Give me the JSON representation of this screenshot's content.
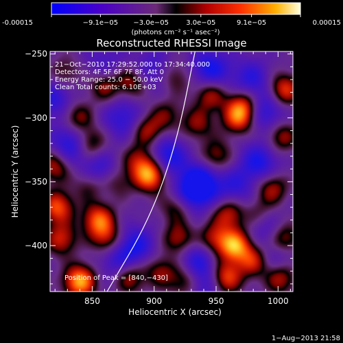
{
  "colorbar": {
    "tick_labels": [
      "-0.00015",
      "−9.1e−05",
      "−3.0e−05",
      "3.0e−05",
      "9.1e−05",
      "0.00015"
    ],
    "tick_values": [
      -0.00015,
      -9.1e-05,
      -3e-05,
      3e-05,
      9.1e-05,
      0.00015
    ],
    "label": "(photons cm⁻² s⁻¹ asec⁻²)",
    "range": [
      -0.00015,
      0.00015
    ]
  },
  "chart_data": {
    "type": "heatmap",
    "title": "Reconstructed RHESSI Image",
    "xlabel": "Heliocentric X (arcsec)",
    "ylabel": "Heliocentric Y (arcsec)",
    "xlim": [
      816,
      1012
    ],
    "ylim": [
      -436,
      -248
    ],
    "x_ticks": [
      850,
      900,
      950,
      1000
    ],
    "y_ticks": [
      -250,
      -300,
      -350,
      -400
    ],
    "annotations": [
      "21−Oct−2010 17:29:52.000  to  17:34:40.000",
      "Detectors: 4F 5F 6F 7F 8F, Att 0",
      "Energy Range: 25.0 − 50.0 keV",
      "Clean     Total counts: 6.10E+03"
    ],
    "peak_label": "Position of Peak = [840,−430]",
    "peak": [
      840,
      -430
    ],
    "limb_line": [
      [
        862,
        -436
      ],
      [
        896,
        -380
      ],
      [
        918,
        -320
      ],
      [
        933,
        -248
      ]
    ],
    "sources": [
      {
        "x": 840,
        "y": -428,
        "amp": 1.0
      },
      {
        "x": 897,
        "y": -345,
        "amp": 0.97
      },
      {
        "x": 895,
        "y": -310,
        "amp": 0.55
      },
      {
        "x": 888,
        "y": -333,
        "amp": 0.5
      },
      {
        "x": 822,
        "y": -370,
        "amp": 0.75
      },
      {
        "x": 825,
        "y": -395,
        "amp": 0.6
      },
      {
        "x": 820,
        "y": -338,
        "amp": 0.55
      },
      {
        "x": 855,
        "y": -380,
        "amp": 0.78
      },
      {
        "x": 862,
        "y": -395,
        "amp": 0.55
      },
      {
        "x": 848,
        "y": -320,
        "amp": 0.55
      },
      {
        "x": 838,
        "y": -300,
        "amp": 0.5
      },
      {
        "x": 860,
        "y": -275,
        "amp": 0.5
      },
      {
        "x": 882,
        "y": -272,
        "amp": 0.5
      },
      {
        "x": 848,
        "y": -352,
        "amp": 0.45
      },
      {
        "x": 965,
        "y": -400,
        "amp": 0.95
      },
      {
        "x": 960,
        "y": -375,
        "amp": 0.6
      },
      {
        "x": 958,
        "y": -425,
        "amp": 0.75
      },
      {
        "x": 980,
        "y": -412,
        "amp": 0.6
      },
      {
        "x": 948,
        "y": -395,
        "amp": 0.55
      },
      {
        "x": 968,
        "y": -300,
        "amp": 0.7
      },
      {
        "x": 972,
        "y": -290,
        "amp": 0.6
      },
      {
        "x": 945,
        "y": -282,
        "amp": 0.55
      },
      {
        "x": 935,
        "y": -305,
        "amp": 0.45
      },
      {
        "x": 950,
        "y": -330,
        "amp": 0.5
      },
      {
        "x": 1005,
        "y": -278,
        "amp": 0.7
      },
      {
        "x": 1003,
        "y": -315,
        "amp": 0.5
      },
      {
        "x": 995,
        "y": -355,
        "amp": 0.55
      },
      {
        "x": 1005,
        "y": -395,
        "amp": 0.6
      },
      {
        "x": 1002,
        "y": -425,
        "amp": 0.6
      },
      {
        "x": 920,
        "y": -395,
        "amp": 0.55
      },
      {
        "x": 918,
        "y": -370,
        "amp": 0.45
      },
      {
        "x": 905,
        "y": -420,
        "amp": 0.45
      },
      {
        "x": 925,
        "y": -428,
        "amp": 0.5
      },
      {
        "x": 880,
        "y": -425,
        "amp": 0.55
      },
      {
        "x": 918,
        "y": -268,
        "amp": 0.35
      },
      {
        "x": 828,
        "y": -265,
        "amp": 0.35
      },
      {
        "x": 985,
        "y": -375,
        "amp": 0.35
      },
      {
        "x": 870,
        "y": -350,
        "amp": 0.35
      },
      {
        "x": 910,
        "y": -298,
        "amp": 0.35
      }
    ],
    "sinks": [
      {
        "x": 833,
        "y": -320,
        "amp": 0.6
      },
      {
        "x": 855,
        "y": -342,
        "amp": 0.5
      },
      {
        "x": 875,
        "y": -300,
        "amp": 0.45
      },
      {
        "x": 910,
        "y": -330,
        "amp": 0.6
      },
      {
        "x": 938,
        "y": -350,
        "amp": 0.65
      },
      {
        "x": 945,
        "y": -262,
        "amp": 0.6
      },
      {
        "x": 930,
        "y": -360,
        "amp": 0.5
      },
      {
        "x": 985,
        "y": -335,
        "amp": 0.55
      },
      {
        "x": 990,
        "y": -295,
        "amp": 0.5
      },
      {
        "x": 978,
        "y": -270,
        "amp": 0.45
      },
      {
        "x": 935,
        "y": -410,
        "amp": 0.45
      },
      {
        "x": 885,
        "y": -400,
        "amp": 0.5
      },
      {
        "x": 870,
        "y": -412,
        "amp": 0.4
      },
      {
        "x": 1000,
        "y": -410,
        "amp": 0.35
      },
      {
        "x": 940,
        "y": -430,
        "amp": 0.4
      },
      {
        "x": 860,
        "y": -258,
        "amp": 0.3
      },
      {
        "x": 898,
        "y": -262,
        "amp": 0.35
      },
      {
        "x": 820,
        "y": -285,
        "amp": 0.45
      },
      {
        "x": 990,
        "y": -385,
        "amp": 0.35
      },
      {
        "x": 965,
        "y": -355,
        "amp": 0.4
      }
    ]
  },
  "footer": {
    "timestamp": "1−Aug−2013 21:58"
  }
}
